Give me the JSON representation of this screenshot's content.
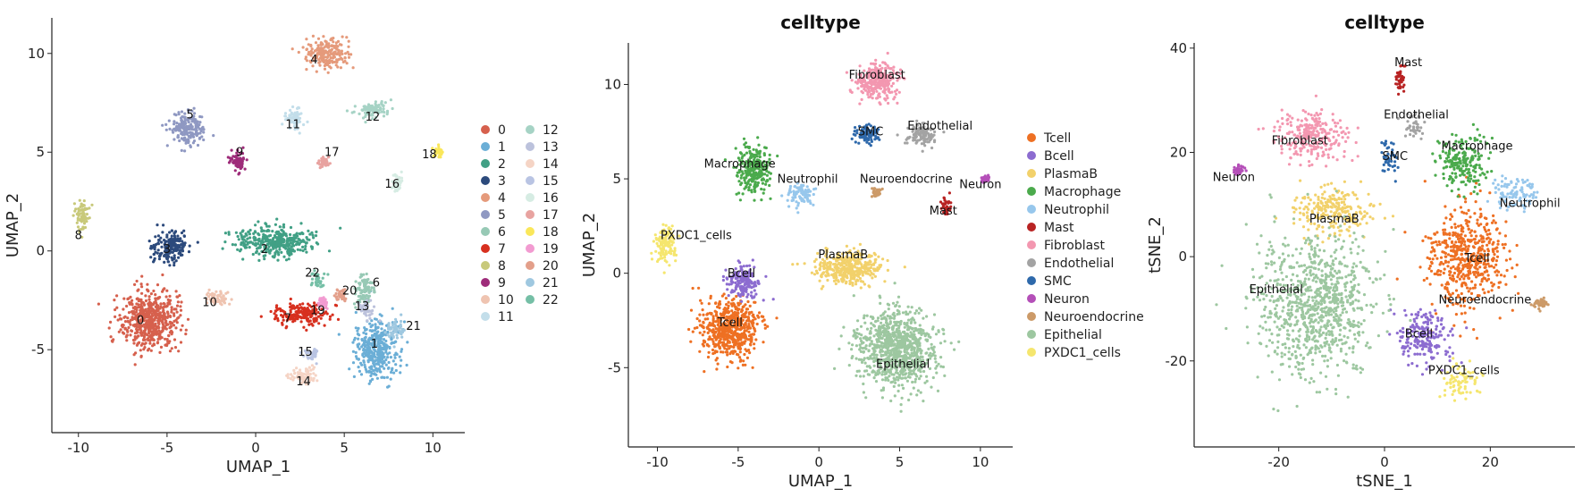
{
  "chart_data": [
    {
      "type": "scatter",
      "title": "",
      "xlabel": "UMAP_1",
      "ylabel": "UMAP_2",
      "xlim": [
        -11.5,
        11.8
      ],
      "ylim": [
        -9.2,
        11.8
      ],
      "xticks": [
        -10,
        -5,
        0,
        5,
        10
      ],
      "yticks": [
        -5,
        0,
        5,
        10
      ],
      "legend_position": "right",
      "legend_columns": 2,
      "series": [
        {
          "name": "0",
          "color": "#D6604D",
          "x": -6.0,
          "y": -3.5,
          "sx": 1.5,
          "sy": 1.4
        },
        {
          "name": "1",
          "color": "#6BAED6",
          "x": 6.8,
          "y": -5.0,
          "sx": 1.1,
          "sy": 1.3
        },
        {
          "name": "2",
          "color": "#41A085",
          "x": 1.0,
          "y": 0.5,
          "sx": 2.0,
          "sy": 0.7
        },
        {
          "name": "3",
          "color": "#2C4A7C",
          "x": -4.8,
          "y": 0.2,
          "sx": 0.9,
          "sy": 0.8
        },
        {
          "name": "4",
          "color": "#E59A7B",
          "x": 4.0,
          "y": 10.0,
          "sx": 1.1,
          "sy": 0.7
        },
        {
          "name": "5",
          "color": "#8F98C2",
          "x": -3.8,
          "y": 6.2,
          "sx": 0.9,
          "sy": 0.8
        },
        {
          "name": "6",
          "color": "#97C9B5",
          "x": 6.2,
          "y": -2.0,
          "sx": 0.5,
          "sy": 0.7
        },
        {
          "name": "7",
          "color": "#D7301F",
          "x": 2.5,
          "y": -3.2,
          "sx": 1.4,
          "sy": 0.5
        },
        {
          "name": "8",
          "color": "#C8C97A",
          "x": -9.8,
          "y": 1.8,
          "sx": 0.4,
          "sy": 0.7
        },
        {
          "name": "9",
          "color": "#9E2C7A",
          "x": -1.0,
          "y": 4.5,
          "sx": 0.5,
          "sy": 0.5
        },
        {
          "name": "10",
          "color": "#EFC4B1",
          "x": -2.2,
          "y": -2.4,
          "sx": 0.6,
          "sy": 0.4
        },
        {
          "name": "11",
          "color": "#C3DEEA",
          "x": 2.2,
          "y": 6.7,
          "sx": 0.5,
          "sy": 0.5
        },
        {
          "name": "12",
          "color": "#A6D3C5",
          "x": 6.6,
          "y": 7.2,
          "sx": 0.9,
          "sy": 0.4
        },
        {
          "name": "13",
          "color": "#BCC2DC",
          "x": 6.2,
          "y": -3.0,
          "sx": 0.4,
          "sy": 0.4
        },
        {
          "name": "14",
          "color": "#F5D4C5",
          "x": 2.7,
          "y": -6.3,
          "sx": 0.7,
          "sy": 0.4
        },
        {
          "name": "15",
          "color": "#B9C4E3",
          "x": 3.2,
          "y": -5.2,
          "sx": 0.4,
          "sy": 0.3
        },
        {
          "name": "16",
          "color": "#D6ECE3",
          "x": 8.0,
          "y": 3.5,
          "sx": 0.3,
          "sy": 0.4
        },
        {
          "name": "17",
          "color": "#E8A3A0",
          "x": 3.8,
          "y": 4.5,
          "sx": 0.3,
          "sy": 0.2
        },
        {
          "name": "18",
          "color": "#FAE75A",
          "x": 10.3,
          "y": 5.0,
          "sx": 0.25,
          "sy": 0.2
        },
        {
          "name": "19",
          "color": "#F29BD1",
          "x": 3.8,
          "y": -2.6,
          "sx": 0.25,
          "sy": 0.25
        },
        {
          "name": "20",
          "color": "#E39F8A",
          "x": 4.8,
          "y": -2.2,
          "sx": 0.3,
          "sy": 0.3
        },
        {
          "name": "21",
          "color": "#9FC8E0",
          "x": 7.9,
          "y": -4.0,
          "sx": 0.4,
          "sy": 0.5
        },
        {
          "name": "22",
          "color": "#75BFA6",
          "x": 3.5,
          "y": -1.5,
          "sx": 0.4,
          "sy": 0.4
        }
      ],
      "annotations": [
        {
          "text": "0",
          "x": -6.5,
          "y": -3.7
        },
        {
          "text": "1",
          "x": 6.7,
          "y": -4.9
        },
        {
          "text": "2",
          "x": 0.5,
          "y": -0.1
        },
        {
          "text": "3",
          "x": -5.0,
          "y": -0.1
        },
        {
          "text": "4",
          "x": 3.3,
          "y": 9.5
        },
        {
          "text": "5",
          "x": -3.7,
          "y": 6.7
        },
        {
          "text": "6",
          "x": 6.8,
          "y": -1.8
        },
        {
          "text": "7",
          "x": 1.8,
          "y": -3.6
        },
        {
          "text": "8",
          "x": -10.0,
          "y": 0.6
        },
        {
          "text": "9",
          "x": -0.9,
          "y": 4.8
        },
        {
          "text": "10",
          "x": -2.6,
          "y": -2.8
        },
        {
          "text": "11",
          "x": 2.1,
          "y": 6.2
        },
        {
          "text": "12",
          "x": 6.6,
          "y": 6.6
        },
        {
          "text": "13",
          "x": 6.0,
          "y": -3.0
        },
        {
          "text": "14",
          "x": 2.7,
          "y": -6.8
        },
        {
          "text": "15",
          "x": 2.8,
          "y": -5.3
        },
        {
          "text": "16",
          "x": 7.7,
          "y": 3.2
        },
        {
          "text": "17",
          "x": 4.3,
          "y": 4.8
        },
        {
          "text": "18",
          "x": 9.8,
          "y": 4.7
        },
        {
          "text": "19",
          "x": 3.5,
          "y": -3.2
        },
        {
          "text": "20",
          "x": 5.3,
          "y": -2.2
        },
        {
          "text": "21",
          "x": 8.9,
          "y": -4.0
        },
        {
          "text": "22",
          "x": 3.2,
          "y": -1.3
        }
      ]
    },
    {
      "type": "scatter",
      "title": "celltype",
      "xlabel": "UMAP_1",
      "ylabel": "UMAP_2",
      "xlim": [
        -11.8,
        12.0
      ],
      "ylim": [
        -9.2,
        12.2
      ],
      "xticks": [
        -10,
        -5,
        0,
        5,
        10
      ],
      "yticks": [
        -5,
        0,
        5,
        10
      ],
      "legend_position": "right",
      "legend_columns": 1,
      "series": [
        {
          "name": "Tcell",
          "color": "#EE7023",
          "x": -5.5,
          "y": -3.0,
          "sx": 1.6,
          "sy": 1.4
        },
        {
          "name": "Bcell",
          "color": "#8C6CD0",
          "x": -4.7,
          "y": -0.5,
          "sx": 0.9,
          "sy": 0.8
        },
        {
          "name": "PlasmaB",
          "color": "#F2D16B",
          "x": 1.7,
          "y": 0.3,
          "sx": 1.8,
          "sy": 0.8
        },
        {
          "name": "Macrophage",
          "color": "#4BAA4C",
          "x": -4.0,
          "y": 5.5,
          "sx": 0.9,
          "sy": 1.1
        },
        {
          "name": "Neutrophil",
          "color": "#97C7EC",
          "x": -1.2,
          "y": 4.2,
          "sx": 0.7,
          "sy": 0.5
        },
        {
          "name": "Mast",
          "color": "#B82323",
          "x": 7.9,
          "y": 3.5,
          "sx": 0.3,
          "sy": 0.4
        },
        {
          "name": "Fibroblast",
          "color": "#F397B0",
          "x": 3.6,
          "y": 10.2,
          "sx": 1.2,
          "sy": 0.9
        },
        {
          "name": "Endothelial",
          "color": "#A3A3A3",
          "x": 6.3,
          "y": 7.3,
          "sx": 0.8,
          "sy": 0.5
        },
        {
          "name": "SMC",
          "color": "#2E69AB",
          "x": 3.0,
          "y": 7.4,
          "sx": 0.7,
          "sy": 0.5
        },
        {
          "name": "Neuron",
          "color": "#B44FB8",
          "x": 10.3,
          "y": 5.0,
          "sx": 0.25,
          "sy": 0.2
        },
        {
          "name": "Neuroendocrine",
          "color": "#CC9A68",
          "x": 3.6,
          "y": 4.3,
          "sx": 0.25,
          "sy": 0.2
        },
        {
          "name": "Epithelial",
          "color": "#9DC7A0",
          "x": 4.8,
          "y": -4.0,
          "sx": 2.2,
          "sy": 1.8
        },
        {
          "name": "PXDC1_cells",
          "color": "#F5E66E",
          "x": -9.5,
          "y": 1.5,
          "sx": 0.6,
          "sy": 0.8
        }
      ],
      "annotations": [
        {
          "text": "Fibroblast",
          "x": 3.6,
          "y": 10.3
        },
        {
          "text": "SMC",
          "x": 3.2,
          "y": 7.3
        },
        {
          "text": "Endothelial",
          "x": 7.5,
          "y": 7.6
        },
        {
          "text": "Macrophage",
          "x": -4.9,
          "y": 5.6
        },
        {
          "text": "Neutrophil",
          "x": -0.7,
          "y": 4.8
        },
        {
          "text": "Neuroendocrine",
          "x": 5.4,
          "y": 4.8
        },
        {
          "text": "Neuron",
          "x": 10.0,
          "y": 4.5
        },
        {
          "text": "Mast",
          "x": 7.7,
          "y": 3.1
        },
        {
          "text": "PXDC1_cells",
          "x": -7.6,
          "y": 1.8
        },
        {
          "text": "PlasmaB",
          "x": 1.5,
          "y": 0.8
        },
        {
          "text": "Bcell",
          "x": -4.8,
          "y": -0.2
        },
        {
          "text": "Tcell",
          "x": -5.5,
          "y": -2.8
        },
        {
          "text": "Epithelial",
          "x": 5.2,
          "y": -5.0
        }
      ]
    },
    {
      "type": "scatter",
      "title": "celltype",
      "xlabel": "tSNE_1",
      "ylabel": "tSNE_2",
      "xlim": [
        -36,
        36
      ],
      "ylim": [
        -36.5,
        41
      ],
      "xticks": [
        -20,
        0,
        20
      ],
      "yticks": [
        -20,
        0,
        20,
        40
      ],
      "series": [
        {
          "name": "Tcell",
          "color": "#EE7023",
          "x": 15.5,
          "y": 0,
          "sx": 6.5,
          "sy": 9
        },
        {
          "name": "Bcell",
          "color": "#8C6CD0",
          "x": 7.5,
          "y": -15.5,
          "sx": 4.5,
          "sy": 5
        },
        {
          "name": "PlasmaB",
          "color": "#F2D16B",
          "x": -9.5,
          "y": 9,
          "sx": 7,
          "sy": 4
        },
        {
          "name": "Macrophage",
          "color": "#4BAA4C",
          "x": 15.0,
          "y": 18,
          "sx": 4.5,
          "sy": 5
        },
        {
          "name": "Neutrophil",
          "color": "#97C7EC",
          "x": 24.5,
          "y": 12,
          "sx": 4.5,
          "sy": 2.5
        },
        {
          "name": "Mast",
          "color": "#B82323",
          "x": 3.0,
          "y": 34,
          "sx": 0.8,
          "sy": 2.5
        },
        {
          "name": "Fibroblast",
          "color": "#F397B0",
          "x": -13.5,
          "y": 23,
          "sx": 6.5,
          "sy": 4.5
        },
        {
          "name": "Endothelial",
          "color": "#A3A3A3",
          "x": 5.5,
          "y": 25,
          "sx": 1.8,
          "sy": 2.5
        },
        {
          "name": "SMC",
          "color": "#2E69AB",
          "x": 1.2,
          "y": 19,
          "sx": 1.5,
          "sy": 3
        },
        {
          "name": "Neuron",
          "color": "#B44FB8",
          "x": -27.5,
          "y": 16.5,
          "sx": 1,
          "sy": 0.8
        },
        {
          "name": "Neuroendocrine",
          "color": "#CC9A68",
          "x": 29.5,
          "y": -9,
          "sx": 1.5,
          "sy": 1
        },
        {
          "name": "Epithelial",
          "color": "#9DC7A0",
          "x": -13.0,
          "y": -9,
          "sx": 10,
          "sy": 12
        },
        {
          "name": "PXDC1_cells",
          "color": "#F5E66E",
          "x": 14.0,
          "y": -24,
          "sx": 3,
          "sy": 3
        }
      ],
      "annotations": [
        {
          "text": "Mast",
          "x": 4.5,
          "y": 36.5
        },
        {
          "text": "Endothelial",
          "x": 6.0,
          "y": 26.5
        },
        {
          "text": "Fibroblast",
          "x": -16.0,
          "y": 21.5
        },
        {
          "text": "SMC",
          "x": 2.0,
          "y": 18.5
        },
        {
          "text": "Macrophage",
          "x": 17.5,
          "y": 20.5
        },
        {
          "text": "Neuron",
          "x": -28.5,
          "y": 14.5
        },
        {
          "text": "Neutrophil",
          "x": 27.5,
          "y": 9.5
        },
        {
          "text": "PlasmaB",
          "x": -9.5,
          "y": 6.5
        },
        {
          "text": "Tcell",
          "x": 17.5,
          "y": -1
        },
        {
          "text": "Epithelial",
          "x": -20.5,
          "y": -7
        },
        {
          "text": "Neuroendocrine",
          "x": 19.0,
          "y": -9
        },
        {
          "text": "Bcell",
          "x": 6.5,
          "y": -15.5
        },
        {
          "text": "PXDC1_cells",
          "x": 15.0,
          "y": -22.5
        }
      ]
    }
  ]
}
